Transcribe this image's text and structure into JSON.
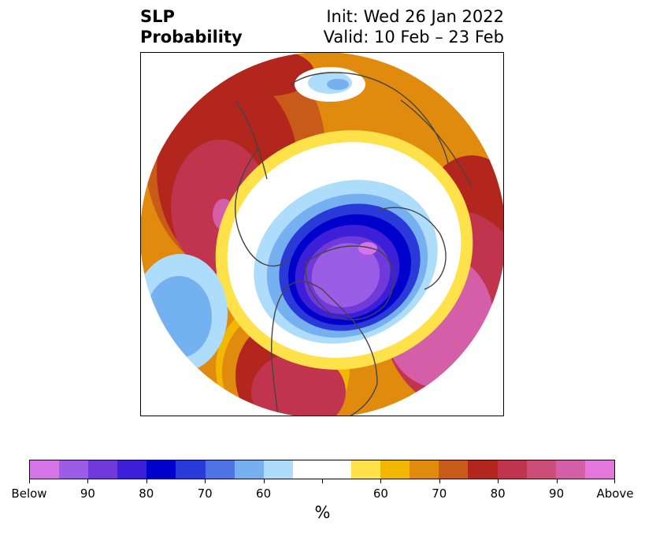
{
  "title": {
    "left_line1": "SLP",
    "left_line2": "Probability",
    "right_line1": "Init: Wed 26 Jan 2022",
    "right_line2": "Valid: 10 Feb – 23 Feb"
  },
  "map": {
    "projection": "north-polar-stereographic",
    "regions": [
      {
        "name": "pacific-high",
        "category": "above",
        "level": "90+",
        "color": "#d45ea8"
      },
      {
        "name": "north-atlantic-high",
        "category": "above",
        "level": "90+",
        "color": "#d45ea8"
      },
      {
        "name": "arctic-canada-low",
        "category": "below",
        "level": "90+",
        "color": "#9b5de5"
      },
      {
        "name": "east-pacific-low",
        "category": "below",
        "level": "60-70",
        "color": "#74b1f0"
      },
      {
        "name": "siberia-low",
        "category": "below",
        "level": "60-80",
        "color": "#3a6ee0"
      }
    ]
  },
  "colorbar": {
    "colors": [
      "#d675e8",
      "#9b5de5",
      "#6f3ad9",
      "#3c1fd6",
      "#0000cc",
      "#2a3ad9",
      "#5073e3",
      "#77b0f0",
      "#aedcfb",
      "#ffffff",
      "#ffffff",
      "#ffe24a",
      "#f2b701",
      "#e08a0e",
      "#c85a1a",
      "#b3261e",
      "#c0344d",
      "#cc4d7a",
      "#d45ea8",
      "#e576dc"
    ],
    "tick_labels": [
      "Below",
      "90",
      "80",
      "70",
      "60",
      "60",
      "70",
      "80",
      "90",
      "Above"
    ],
    "unit": "%"
  }
}
